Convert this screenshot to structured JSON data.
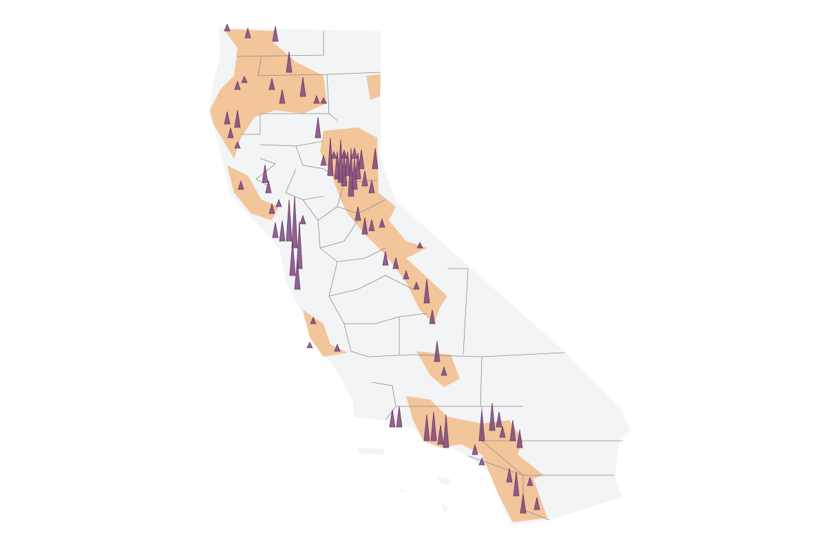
{
  "map": {
    "spikes": [
      10,
      14,
      22,
      30,
      12,
      18,
      25,
      9,
      16,
      28,
      20,
      11,
      8,
      30,
      55,
      40,
      62,
      48,
      35,
      70,
      45,
      38,
      28,
      22,
      18,
      30,
      15,
      12,
      10,
      14,
      20,
      24,
      16,
      12,
      60,
      75,
      68,
      50,
      42,
      30,
      22,
      14,
      10,
      18,
      26,
      12,
      9,
      14,
      20,
      16,
      12,
      10,
      35,
      20,
      12,
      30,
      42,
      28,
      48,
      38,
      25,
      30,
      45,
      40,
      22,
      16,
      30,
      26,
      20,
      35,
      28,
      18,
      12,
      10,
      14,
      8,
      9,
      8,
      10,
      12
    ]
  }
}
